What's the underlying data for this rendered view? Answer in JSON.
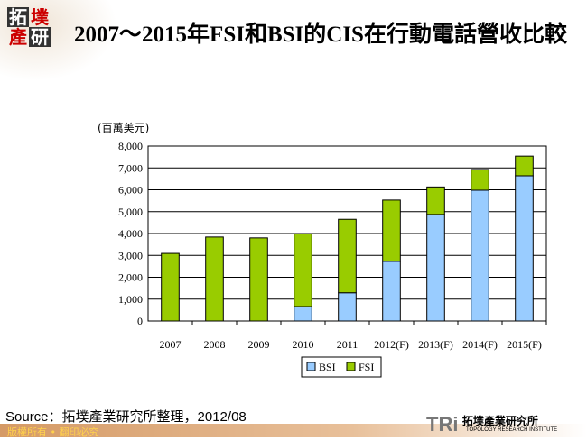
{
  "logo": {
    "text": [
      "拓",
      "墣",
      "產",
      "研"
    ]
  },
  "title": "2007～2015年FSI和BSI的CIS在行動電話營收比較",
  "source": "Source：拓墣產業研究所整理，2012/08",
  "footer": "版權所有 • 翻印必究",
  "brand": {
    "short": "TRi",
    "name": "拓墣產業研究所",
    "en": "TOPOLOGY RESEARCH INSTITUTE"
  },
  "chart_data": {
    "type": "bar",
    "stacked": true,
    "unit_label": "(百萬美元)",
    "categories": [
      "2007",
      "2008",
      "2009",
      "2010",
      "2011",
      "2012(F)",
      "2013(F)",
      "2014(F)",
      "2015(F)"
    ],
    "series": [
      {
        "name": "BSI",
        "color": "#99ccff",
        "values": [
          0,
          0,
          0,
          660,
          1290,
          2730,
          4870,
          5980,
          6640
        ]
      },
      {
        "name": "FSI",
        "color": "#99cc00",
        "values": [
          3090,
          3840,
          3800,
          3340,
          3360,
          2800,
          1260,
          950,
          900
        ]
      }
    ],
    "ylim": [
      0,
      8000
    ],
    "yticks": [
      "0",
      "1,000",
      "2,000",
      "3,000",
      "4,000",
      "5,000",
      "6,000",
      "7,000",
      "8,000"
    ],
    "grid": true,
    "legend": "bottom"
  }
}
